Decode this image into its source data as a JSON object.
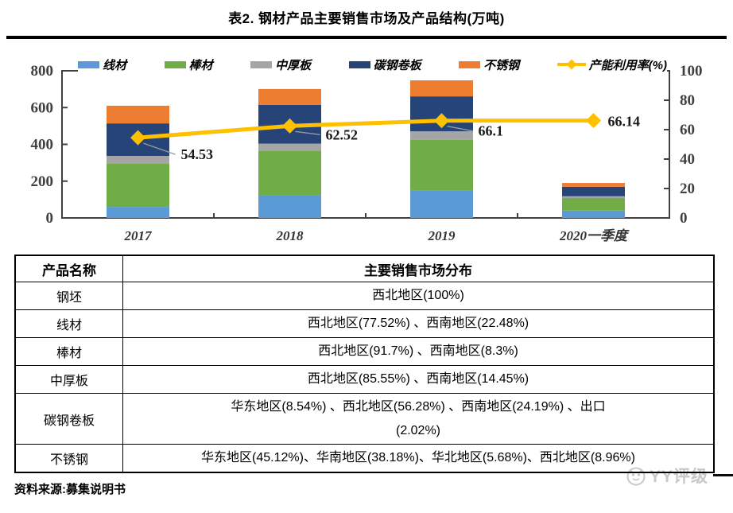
{
  "title": "表2. 钢材产品主要销售市场及产品结构(万吨)",
  "chart_data": {
    "type": "bar",
    "subtype": "stacked-bar-with-line",
    "categories": [
      "2017",
      "2018",
      "2019",
      "2020一季度"
    ],
    "series": [
      {
        "name": "线材",
        "color": "#5B9BD5",
        "values": [
          60,
          125,
          151,
          40
        ]
      },
      {
        "name": "棒材",
        "color": "#70AD47",
        "values": [
          234,
          241,
          273,
          68
        ]
      },
      {
        "name": "中厚板",
        "color": "#A5A5A5",
        "values": [
          43,
          38,
          47,
          10
        ]
      },
      {
        "name": "碳钢卷板",
        "color": "#264478",
        "values": [
          177,
          211,
          190,
          51
        ]
      },
      {
        "name": "不锈钢",
        "color": "#ED7D31",
        "values": [
          96,
          86,
          87,
          21
        ]
      }
    ],
    "line_series": {
      "name": "产能利用率(%)",
      "color": "#FFC000",
      "values": [
        54.53,
        62.52,
        66.1,
        66.14
      ],
      "labels": [
        "54.53",
        "62.52",
        "66.1",
        "66.14"
      ]
    },
    "y_left": {
      "min": 0,
      "max": 800,
      "ticks": [
        0,
        200,
        400,
        600,
        800
      ]
    },
    "y_right": {
      "min": 0,
      "max": 100,
      "ticks": [
        0,
        20,
        40,
        60,
        80,
        100
      ]
    },
    "legend_position": "top",
    "grid": false,
    "title": "",
    "xlabel": "",
    "ylabel": ""
  },
  "table": {
    "headers": [
      "产品名称",
      "主要销售市场分布"
    ],
    "rows": [
      {
        "product": "钢坯",
        "market": "西北地区(100%)"
      },
      {
        "product": "线材",
        "market": "西北地区(77.52%) 、西南地区(22.48%)"
      },
      {
        "product": "棒材",
        "market": "西北地区(91.7%) 、西南地区(8.3%)"
      },
      {
        "product": "中厚板",
        "market": "西北地区(85.55%) 、西南地区(14.45%)"
      },
      {
        "product": "碳钢卷板",
        "market": "华东地区(8.54%) 、西北地区(56.28%) 、西南地区(24.19%) 、出口\n(2.02%)"
      },
      {
        "product": "不锈钢",
        "market": "华东地区(45.12%)、华南地区(38.18%)、华北地区(5.68%)、西北地区(8.96%)"
      }
    ]
  },
  "source": "资料来源:募集说明书",
  "watermark": "YY评级"
}
